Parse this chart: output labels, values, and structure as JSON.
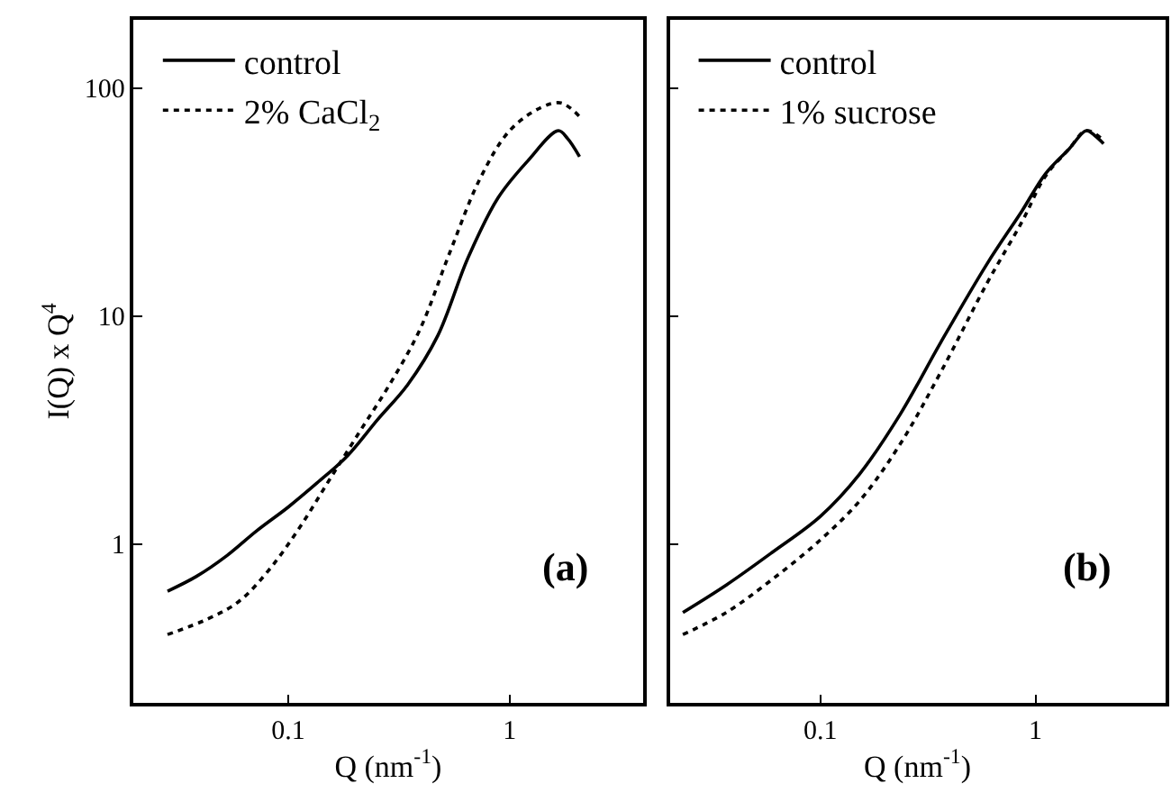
{
  "chart_data": [
    {
      "type": "line",
      "xlabel": "Q (nm$^{-1}$)",
      "ylabel": "I(Q) x Q$^{4}$",
      "log": "xy",
      "legend": "top left",
      "annotations": [
        "(a)"
      ],
      "xlim": [
        0.02,
        4
      ],
      "xticks": [
        0.1,
        1
      ],
      "ylim": [
        0.2,
        200
      ],
      "yticks": [
        1,
        10,
        100
      ],
      "series": [
        {
          "name": "control",
          "color": "#000000",
          "line_style": "solid",
          "x": [
            0.0285,
            0.0385,
            0.053,
            0.072,
            0.1,
            0.135,
            0.185,
            0.253,
            0.347,
            0.474,
            0.649,
            0.887,
            1.21,
            1.66,
            1.83,
            2.07
          ],
          "values": [
            0.62,
            0.72,
            0.89,
            1.14,
            1.45,
            1.85,
            2.43,
            3.5,
            5.0,
            8.2,
            18,
            33,
            48,
            65,
            60,
            50
          ]
        },
        {
          "name": "2% CaCl$_{2}$",
          "color": "#000000",
          "line_style": "dotted",
          "x": [
            0.0285,
            0.0437,
            0.06,
            0.082,
            0.112,
            0.153,
            0.21,
            0.287,
            0.393,
            0.537,
            0.735,
            1.0,
            1.38,
            1.71,
            2.07
          ],
          "values": [
            0.4,
            0.47,
            0.56,
            0.77,
            1.17,
            1.9,
            3.1,
            5.0,
            8.7,
            19,
            40,
            65,
            82,
            86,
            75
          ]
        }
      ]
    },
    {
      "type": "line",
      "xlabel": "Q (nm$^{-1}$)",
      "log": "xy",
      "legend": "top left",
      "annotations": [
        "(b)"
      ],
      "tick_labels": "x",
      "xlim": [
        0.02,
        4
      ],
      "xticks": [
        0.1,
        1
      ],
      "ylim": [
        0.2,
        200
      ],
      "yticks": [
        1,
        10,
        100
      ],
      "series": [
        {
          "name": "control",
          "color": "#000000",
          "line_style": "solid",
          "x": [
            0.023,
            0.0366,
            0.06,
            0.1,
            0.152,
            0.235,
            0.364,
            0.597,
            0.867,
            1.11,
            1.43,
            1.72,
            1.88,
            2.07
          ],
          "values": [
            0.5,
            0.66,
            0.92,
            1.32,
            2.02,
            3.7,
            7.7,
            17,
            29,
            42,
            54,
            65,
            62,
            57
          ]
        },
        {
          "name": "1% sucrose",
          "color": "#000000",
          "line_style": "dotted",
          "x": [
            0.023,
            0.0366,
            0.06,
            0.1,
            0.152,
            0.235,
            0.364,
            0.597,
            0.867,
            1.11,
            1.43,
            1.72,
            2.07
          ],
          "values": [
            0.4,
            0.5,
            0.7,
            1.04,
            1.54,
            2.74,
            5.7,
            14,
            26,
            41,
            54,
            65,
            59
          ]
        }
      ]
    }
  ]
}
